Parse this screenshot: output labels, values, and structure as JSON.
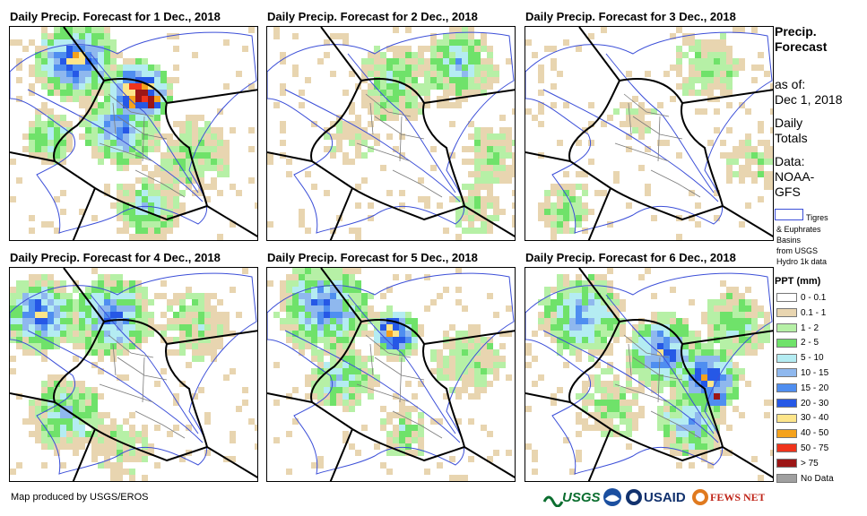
{
  "panels": [
    {
      "title": "Daily Precip. Forecast for 1 Dec., 2018"
    },
    {
      "title": "Daily Precip. Forecast for 2 Dec., 2018"
    },
    {
      "title": "Daily Precip. Forecast for 3 Dec., 2018"
    },
    {
      "title": "Daily Precip. Forecast for 4 Dec., 2018"
    },
    {
      "title": "Daily Precip. Forecast for 5 Dec., 2018"
    },
    {
      "title": "Daily Precip. Forecast for 6 Dec., 2018"
    }
  ],
  "sidebar": {
    "heading_line1": "Precip.",
    "heading_line2": "Forecast",
    "asof_line1": "as of:",
    "asof_line2": "Dec 1, 2018",
    "daily_line1": "Daily",
    "daily_line2": "Totals",
    "data_line1": "Data:",
    "data_line2": "NOAA-",
    "data_line3": "GFS",
    "basin_line1": "Tigres",
    "basin_line2": "& Euphrates",
    "basin_line3": "Basins",
    "basin_line4": "from USGS",
    "basin_line5": "Hydro 1k data"
  },
  "legend": {
    "title": "PPT (mm)",
    "items": [
      {
        "label": "0 - 0.1",
        "color": "#ffffff"
      },
      {
        "label": "0.1 - 1",
        "color": "#e8d5b0"
      },
      {
        "label": "1 - 2",
        "color": "#b6f0a6"
      },
      {
        "label": "2 - 5",
        "color": "#6fe26a"
      },
      {
        "label": "5 - 10",
        "color": "#b4ecf2"
      },
      {
        "label": "10 - 15",
        "color": "#8fb8ee"
      },
      {
        "label": "15 - 20",
        "color": "#4f8ef0"
      },
      {
        "label": "20 - 30",
        "color": "#2658e6"
      },
      {
        "label": "30 - 40",
        "color": "#fde58a"
      },
      {
        "label": "40 - 50",
        "color": "#f5a21c"
      },
      {
        "label": "50 - 75",
        "color": "#f0341c"
      },
      {
        "label": "> 75",
        "color": "#9c1616"
      },
      {
        "label": "No Data",
        "color": "#a0a0a0"
      }
    ]
  },
  "footer": {
    "credit": "Map produced by USGS/EROS",
    "logo_usgs": "USGS",
    "logo_usaid": "USAID",
    "logo_fewsnet": "FEWS NET"
  }
}
